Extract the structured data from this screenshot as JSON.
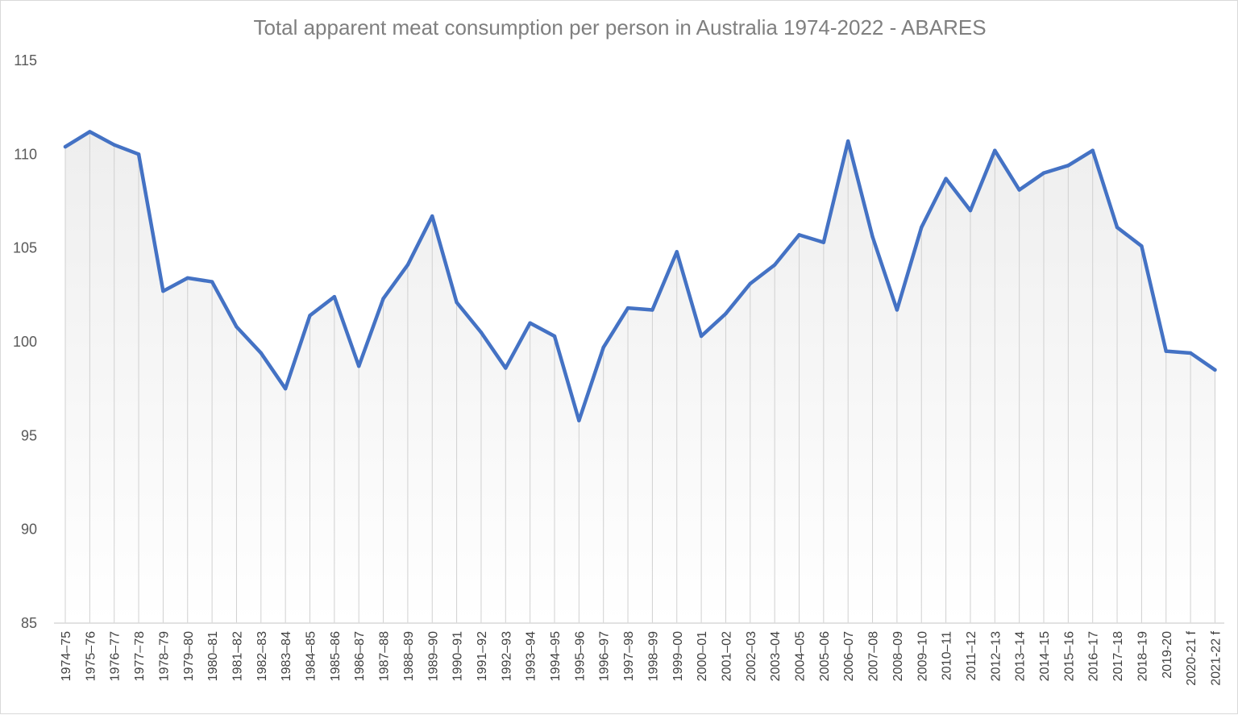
{
  "chart_data": {
    "type": "area",
    "title": "Total apparent meat consumption per person in Australia 1974-2022 - ABARES",
    "xlabel": "",
    "ylabel": "",
    "ylim": [
      85,
      115
    ],
    "yticks": [
      "85",
      "90",
      "95",
      "100",
      "105",
      "110",
      "115"
    ],
    "grid": "vertical drop lines per category",
    "legend": "none",
    "categories": [
      "1974–75",
      "1975–76",
      "1976–77",
      "1977–78",
      "1978–79",
      "1979–80",
      "1980–81",
      "1981–82",
      "1982–83",
      "1983–84",
      "1984–85",
      "1985–86",
      "1986–87",
      "1987–88",
      "1988–89",
      "1989–90",
      "1990–91",
      "1991–92",
      "1992–93",
      "1993–94",
      "1994–95",
      "1995–96",
      "1996–97",
      "1997–98",
      "1998–99",
      "1999–00",
      "2000–01",
      "2001–02",
      "2002–03",
      "2003–04",
      "2004–05",
      "2005–06",
      "2006–07",
      "2007–08",
      "2008–09",
      "2009–10",
      "2010–11",
      "2011–12",
      "2012–13",
      "2013–14",
      "2014–15",
      "2015–16",
      "2016–17",
      "2017–18",
      "2018–19",
      "2019-20",
      "2020-21 f",
      "2021-22 f"
    ],
    "series": [
      {
        "values": [
          110.4,
          111.2,
          110.5,
          110.0,
          102.7,
          103.4,
          103.2,
          100.8,
          99.4,
          97.5,
          101.4,
          102.4,
          98.7,
          102.3,
          104.1,
          106.7,
          102.1,
          100.5,
          98.6,
          101.0,
          100.3,
          95.8,
          99.7,
          101.8,
          101.7,
          104.8,
          100.3,
          101.5,
          103.1,
          104.1,
          105.7,
          105.3,
          110.7,
          105.6,
          101.7,
          106.1,
          108.7,
          107.0,
          110.2,
          108.1,
          109.0,
          109.4,
          110.2,
          106.1,
          105.1,
          99.5,
          99.4,
          98.5
        ],
        "color": "#4472C4"
      }
    ],
    "colors": {
      "line": "#4472C4",
      "fill_top": "#eeeeee",
      "fill_bottom": "#ffffff",
      "dropline": "#d0d0d0",
      "axis": "#d9d9d9"
    }
  }
}
